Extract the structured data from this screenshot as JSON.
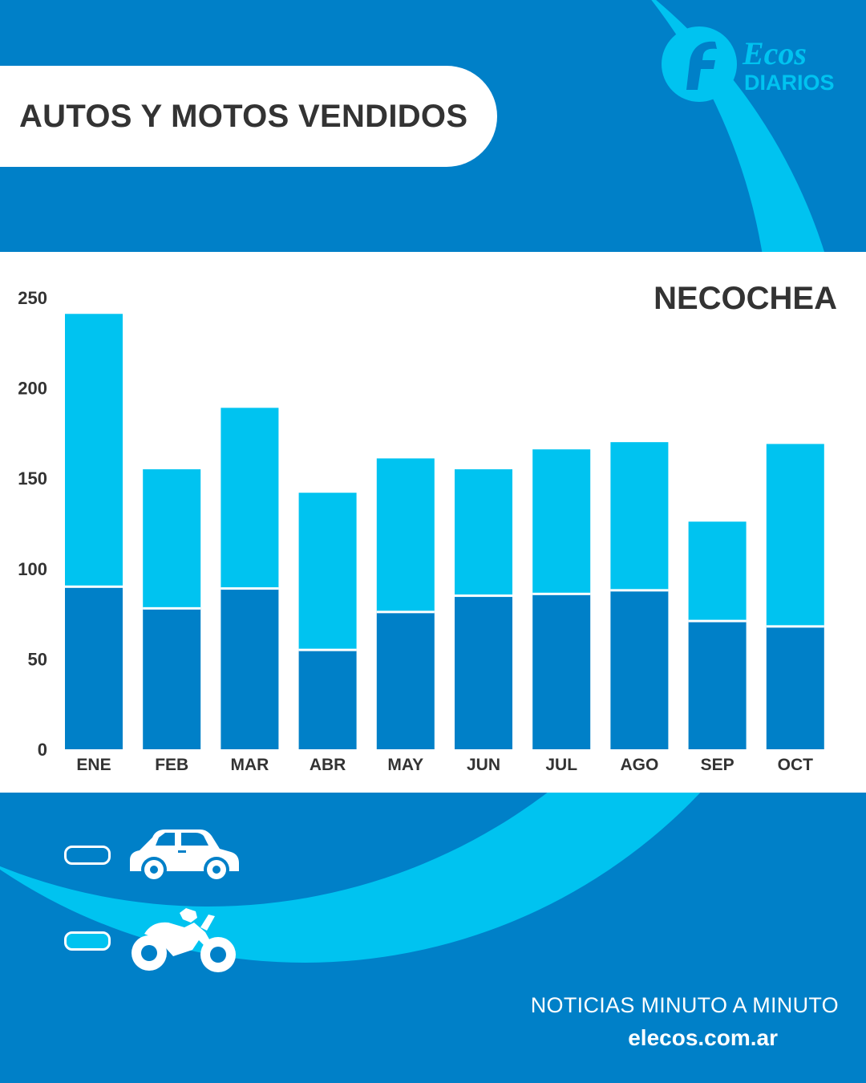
{
  "header": {
    "title": "AUTOS Y MOTOS VENDIDOS"
  },
  "logo": {
    "line1": "Ecos",
    "line2": "DIARIOS",
    "icon": "ecos-f-logo-icon"
  },
  "colors": {
    "dark_blue": "#0080c8",
    "light_blue": "#00c3f0",
    "text_dark": "#333333"
  },
  "legend": [
    {
      "icon": "car-icon",
      "series": "dark"
    },
    {
      "icon": "motorcycle-icon",
      "series": "light"
    }
  ],
  "footer": {
    "tagline": "NOTICIAS MINUTO A MINUTO",
    "url": "elecos.com.ar"
  },
  "chart_data": {
    "type": "bar",
    "stacked": true,
    "title": "NECOCHEA",
    "categories": [
      "ENE",
      "FEB",
      "MAR",
      "ABR",
      "MAY",
      "JUN",
      "JUL",
      "AGO",
      "SEP",
      "OCT"
    ],
    "series": [
      {
        "color": "#0080c8",
        "values": [
          90,
          78,
          89,
          55,
          76,
          85,
          86,
          88,
          71,
          68
        ]
      },
      {
        "color": "#00c3f0",
        "values": [
          151,
          77,
          100,
          87,
          85,
          70,
          80,
          82,
          55,
          101
        ]
      }
    ],
    "yticks": [
      "0",
      "50",
      "100",
      "150",
      "200",
      "250"
    ],
    "ylim": [
      0,
      250
    ],
    "grid": false,
    "legend": "bottom-left"
  }
}
